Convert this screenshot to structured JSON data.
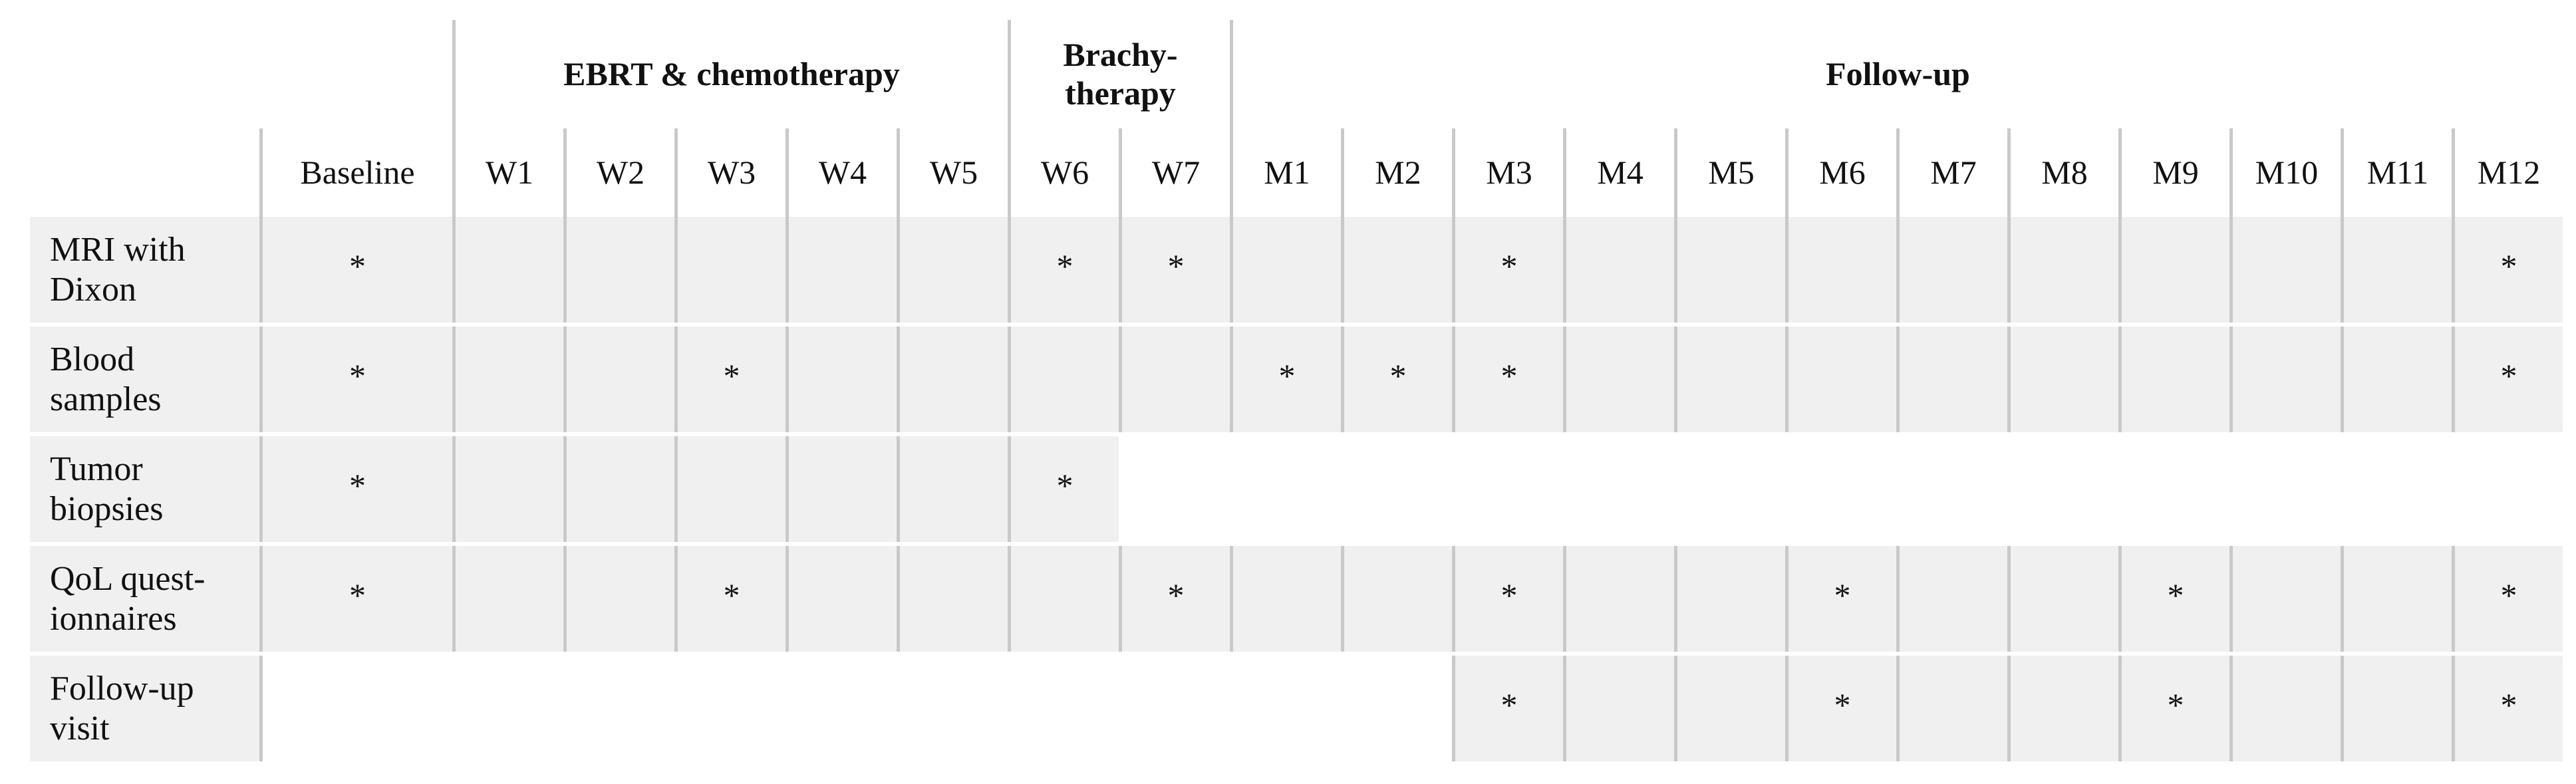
{
  "table": {
    "groups": [
      {
        "label": "EBRT & chemotherapy",
        "from": "W1",
        "to": "W5"
      },
      {
        "label": "Brachy-\ntherapy",
        "from": "W6",
        "to": "W7"
      },
      {
        "label": "Follow-up",
        "from": "M1",
        "to": "M12"
      }
    ],
    "columns": [
      "Baseline",
      "W1",
      "W2",
      "W3",
      "W4",
      "W5",
      "W6",
      "W7",
      "M1",
      "M2",
      "M3",
      "M4",
      "M5",
      "M6",
      "M7",
      "M8",
      "M9",
      "M10",
      "M11",
      "M12"
    ],
    "rows": [
      {
        "label": "MRI with\nDixon",
        "cells": [
          "*",
          null,
          null,
          null,
          null,
          null,
          "*",
          "*",
          null,
          null,
          "*",
          null,
          null,
          null,
          null,
          null,
          null,
          null,
          null,
          "*"
        ]
      },
      {
        "label": "Blood\nsamples",
        "cells": [
          "*",
          null,
          null,
          "*",
          null,
          null,
          null,
          null,
          "*",
          "*",
          "*",
          null,
          null,
          null,
          null,
          null,
          null,
          null,
          null,
          "*"
        ]
      },
      {
        "label": "Tumor\nbiopsies",
        "cells": [
          "*",
          null,
          null,
          null,
          null,
          null,
          "*",
          null,
          null,
          null,
          null,
          null,
          null,
          null,
          null,
          null,
          null,
          null,
          null,
          null
        ]
      },
      {
        "label": "QoL quest-\nionnaires",
        "cells": [
          "*",
          null,
          null,
          "*",
          null,
          null,
          null,
          "*",
          null,
          null,
          "*",
          null,
          null,
          "*",
          null,
          null,
          "*",
          null,
          null,
          "*"
        ]
      },
      {
        "label": "Follow-up\nvisit",
        "cells": [
          null,
          null,
          null,
          null,
          null,
          null,
          null,
          null,
          null,
          null,
          "*",
          null,
          null,
          "*",
          null,
          null,
          "*",
          null,
          null,
          "*"
        ]
      }
    ]
  }
}
